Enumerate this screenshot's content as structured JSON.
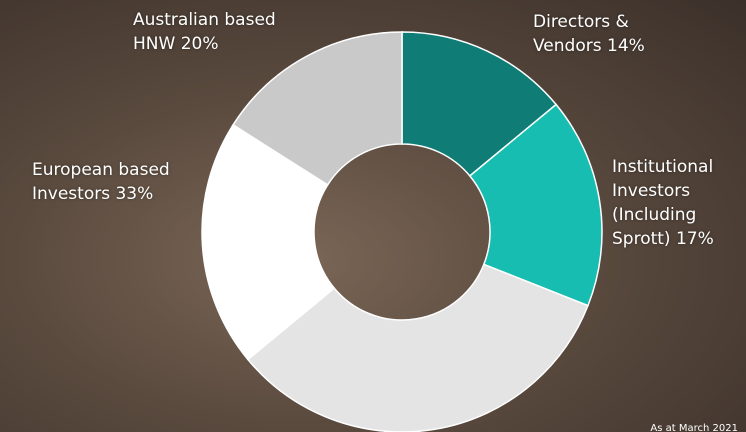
{
  "chart_data": {
    "type": "donut",
    "categories": [
      "Directors & Vendors",
      "Institutional Investors (Including Sprott)",
      "European based Investors",
      "Australian based HNW",
      null
    ],
    "values": [
      14,
      17,
      33,
      20,
      16
    ],
    "value_labels": [
      "14%",
      "17%",
      "33%",
      "20%",
      null
    ],
    "colors": [
      "#0f7d76",
      "#17bdb1",
      "#e4e4e4",
      "#ffffff",
      "#c9c9c9"
    ],
    "annotation": "As at March 2021"
  }
}
